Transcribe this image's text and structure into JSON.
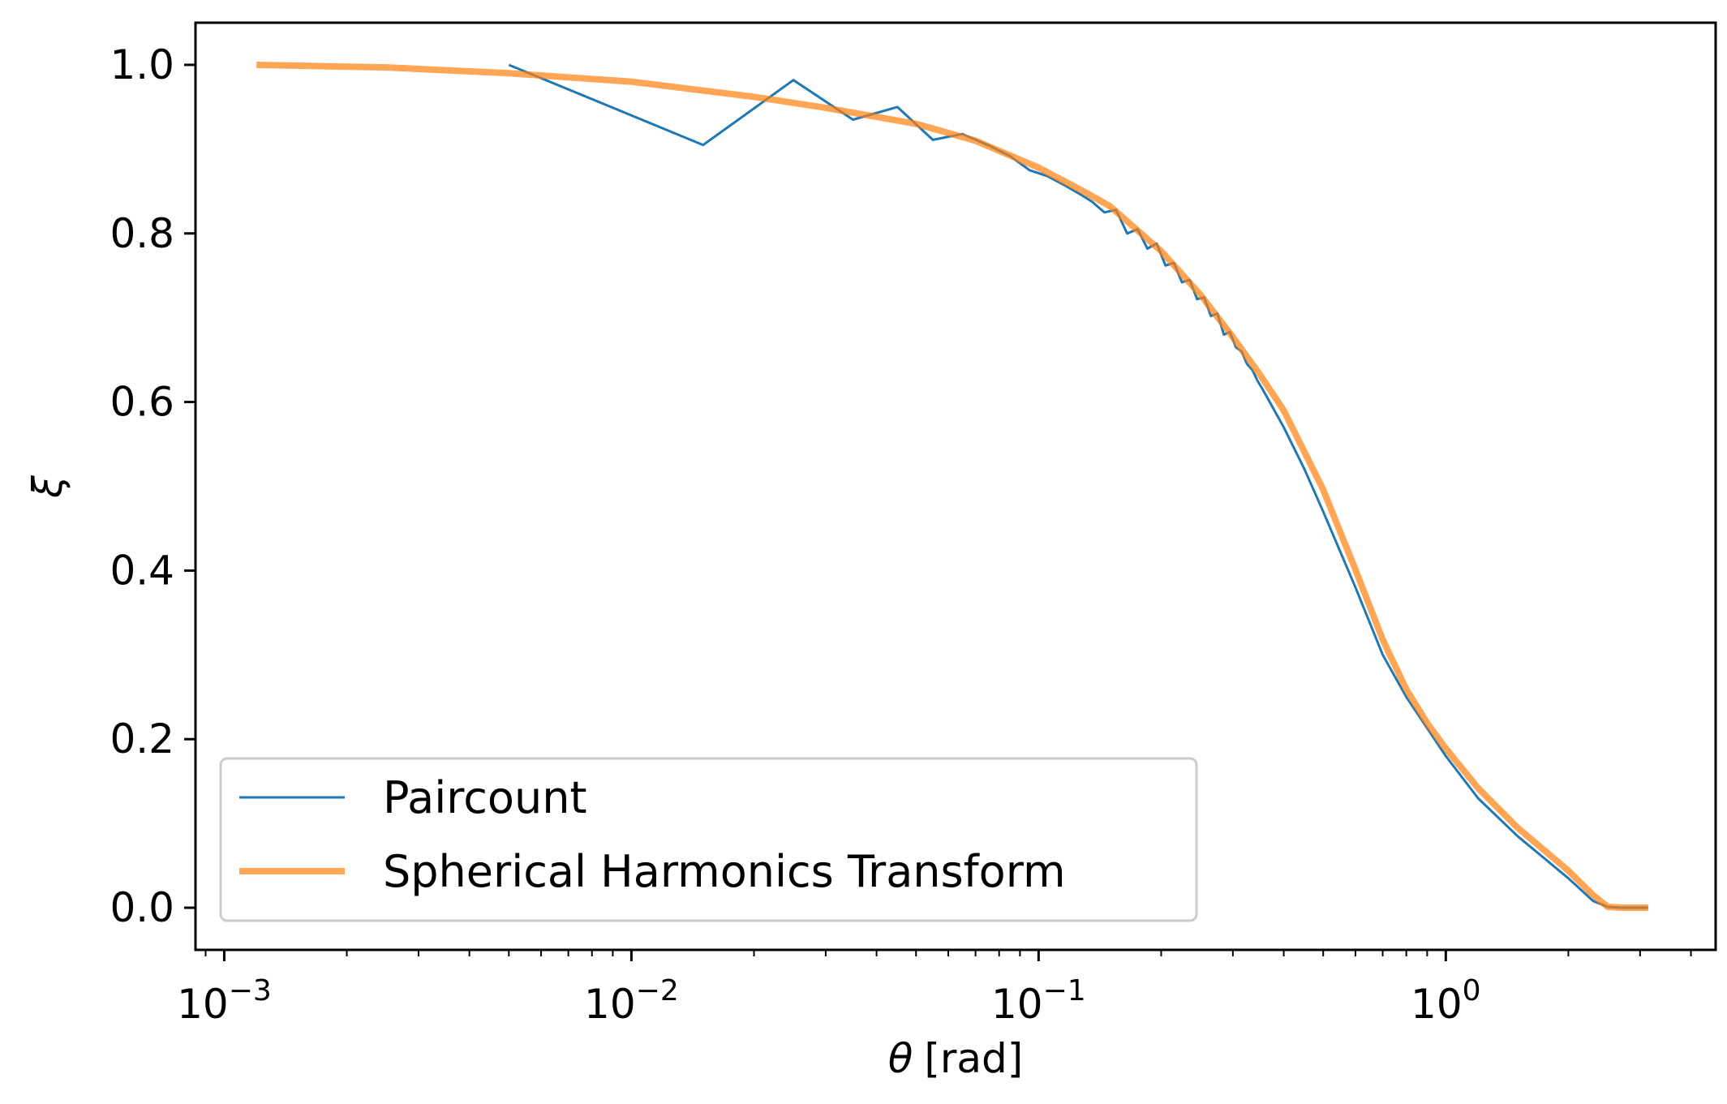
{
  "chart_data": {
    "type": "line",
    "xlabel_symbol": "θ",
    "xlabel_unit": "[rad]",
    "ylabel": "ξ",
    "xscale": "log",
    "xlim": [
      0.00085,
      4.6
    ],
    "ylim": [
      -0.05,
      1.05
    ],
    "grid": false,
    "legend_position": "lower-left",
    "x_ticks": [
      {
        "value": 0.001,
        "base": "10",
        "exp": "−3"
      },
      {
        "value": 0.01,
        "base": "10",
        "exp": "−2"
      },
      {
        "value": 0.1,
        "base": "10",
        "exp": "−1"
      },
      {
        "value": 1,
        "base": "10",
        "exp": "0"
      }
    ],
    "y_ticks": [
      {
        "value": 0.0,
        "label": "0.0"
      },
      {
        "value": 0.2,
        "label": "0.2"
      },
      {
        "value": 0.4,
        "label": "0.4"
      },
      {
        "value": 0.6,
        "label": "0.6"
      },
      {
        "value": 0.8,
        "label": "0.8"
      },
      {
        "value": 1.0,
        "label": "1.0"
      }
    ],
    "series": [
      {
        "name": "Paircount",
        "color": "#1f77b4",
        "line_width": 3,
        "opacity": 1,
        "x": [
          0.005,
          0.015,
          0.025,
          0.035,
          0.045,
          0.055,
          0.065,
          0.075,
          0.085,
          0.095,
          0.105,
          0.115,
          0.125,
          0.135,
          0.145,
          0.155,
          0.165,
          0.175,
          0.185,
          0.195,
          0.205,
          0.215,
          0.225,
          0.235,
          0.245,
          0.255,
          0.265,
          0.275,
          0.285,
          0.295,
          0.305,
          0.315,
          0.325,
          0.335,
          0.345,
          0.355,
          0.4,
          0.45,
          0.5,
          0.6,
          0.7,
          0.8,
          1.0,
          1.2,
          1.5,
          2.0,
          2.3,
          2.5,
          2.7,
          3.14
        ],
        "y": [
          1.0,
          0.905,
          0.982,
          0.935,
          0.95,
          0.911,
          0.918,
          0.905,
          0.892,
          0.875,
          0.868,
          0.858,
          0.848,
          0.838,
          0.825,
          0.828,
          0.8,
          0.805,
          0.782,
          0.788,
          0.762,
          0.765,
          0.742,
          0.745,
          0.722,
          0.724,
          0.702,
          0.705,
          0.68,
          0.683,
          0.665,
          0.66,
          0.645,
          0.638,
          0.625,
          0.615,
          0.57,
          0.52,
          0.47,
          0.38,
          0.3,
          0.25,
          0.18,
          0.13,
          0.085,
          0.035,
          0.008,
          0.001,
          0.0,
          0.0
        ]
      },
      {
        "name": "Spherical Harmonics Transform",
        "color": "#ff7f0e",
        "line_width": 8,
        "opacity": 0.7,
        "x": [
          0.0012,
          0.0025,
          0.005,
          0.01,
          0.02,
          0.03,
          0.05,
          0.07,
          0.1,
          0.13,
          0.15,
          0.2,
          0.25,
          0.3,
          0.35,
          0.4,
          0.5,
          0.6,
          0.7,
          0.8,
          0.9,
          1.0,
          1.2,
          1.5,
          2.0,
          2.3,
          2.5,
          2.7,
          3.14
        ],
        "y": [
          1.0,
          0.997,
          0.99,
          0.98,
          0.962,
          0.949,
          0.93,
          0.91,
          0.878,
          0.849,
          0.832,
          0.779,
          0.727,
          0.677,
          0.632,
          0.59,
          0.496,
          0.401,
          0.318,
          0.259,
          0.219,
          0.189,
          0.142,
          0.095,
          0.044,
          0.015,
          0.001,
          0.0,
          0.0
        ]
      }
    ]
  }
}
